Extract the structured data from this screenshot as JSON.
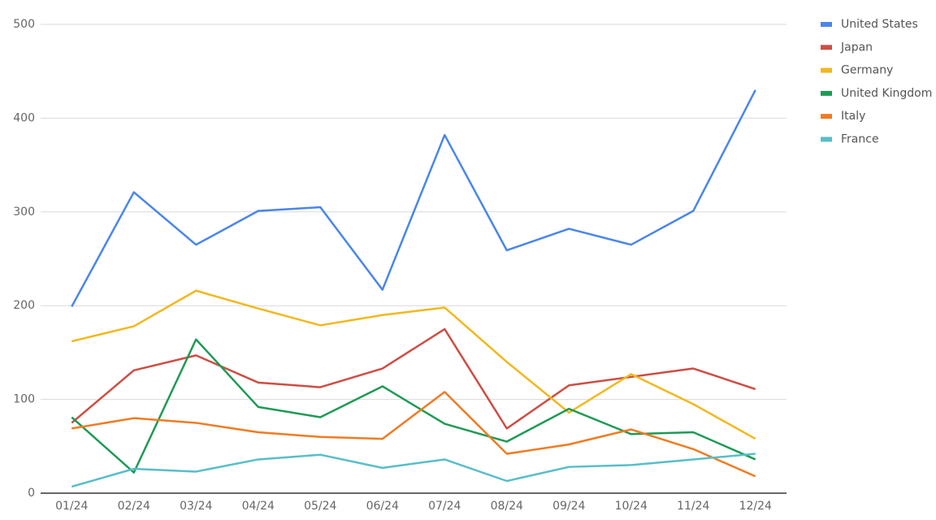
{
  "chart_data": {
    "type": "line",
    "categories": [
      "01/24",
      "02/24",
      "03/24",
      "04/24",
      "05/24",
      "06/24",
      "07/24",
      "08/24",
      "09/24",
      "10/24",
      "11/24",
      "12/24"
    ],
    "series": [
      {
        "name": "United States",
        "color": "#4a86e8",
        "values": [
          199,
          321,
          265,
          301,
          305,
          217,
          382,
          259,
          282,
          265,
          301,
          430
        ]
      },
      {
        "name": "Japan",
        "color": "#cc4e44",
        "values": [
          75,
          131,
          147,
          118,
          113,
          133,
          175,
          69,
          115,
          124,
          133,
          111
        ]
      },
      {
        "name": "Germany",
        "color": "#f2b81c",
        "values": [
          162,
          178,
          216,
          197,
          179,
          190,
          198,
          140,
          86,
          127,
          95,
          58
        ]
      },
      {
        "name": "United Kingdom",
        "color": "#1e9a55",
        "values": [
          81,
          22,
          164,
          92,
          81,
          114,
          74,
          55,
          90,
          63,
          65,
          36
        ]
      },
      {
        "name": "Italy",
        "color": "#f07b22",
        "values": [
          69,
          80,
          75,
          65,
          60,
          58,
          108,
          42,
          52,
          68,
          47,
          18
        ]
      },
      {
        "name": "France",
        "color": "#58bec8",
        "values": [
          7,
          26,
          23,
          36,
          41,
          27,
          36,
          13,
          28,
          30,
          36,
          42
        ]
      }
    ],
    "ylim": [
      0,
      500
    ],
    "yticks": [
      0,
      100,
      200,
      300,
      400,
      500
    ],
    "grid": true,
    "legend": "right"
  }
}
